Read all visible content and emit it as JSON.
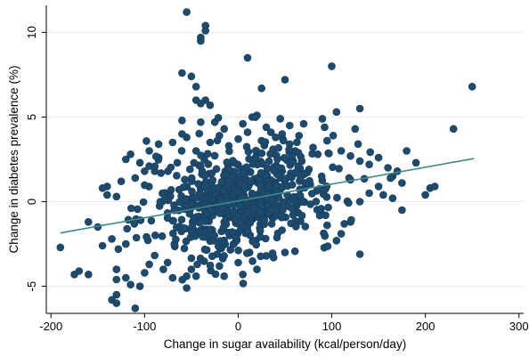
{
  "chart_data": {
    "type": "scatter",
    "xlabel": "Change in sugar availability (kcal/person/day)",
    "ylabel": "Change in diabetes prevalence (%)",
    "xlim": [
      -205,
      305
    ],
    "ylim": [
      -6.6,
      11.6
    ],
    "xticks": [
      -200,
      -100,
      0,
      100,
      200,
      300
    ],
    "yticks": [
      -5,
      0,
      5,
      10
    ],
    "xtick_labels": [
      "-200",
      "-100",
      "0",
      "100",
      "200",
      "300"
    ],
    "ytick_labels": [
      "-5",
      "0",
      "5",
      "10"
    ],
    "grid": true,
    "colors": {
      "points": "#1d4b6e",
      "fit_line": "#3f8a86"
    },
    "series": [
      {
        "points": [
          [
            -55,
            11.2
          ],
          [
            -35,
            10.4
          ],
          [
            -35,
            10.1
          ],
          [
            -40,
            9.7
          ],
          [
            -40,
            9.5
          ],
          [
            10,
            8.5
          ],
          [
            100,
            8.0
          ],
          [
            -60,
            7.6
          ],
          [
            -50,
            7.4
          ],
          [
            50,
            7.2
          ],
          [
            -45,
            6.8
          ],
          [
            25,
            6.7
          ],
          [
            250,
            6.8
          ],
          [
            -45,
            6.0
          ],
          [
            -35,
            6.0
          ],
          [
            -40,
            5.8
          ],
          [
            -30,
            5.7
          ],
          [
            130,
            5.5
          ],
          [
            105,
            5.3
          ],
          [
            -60,
            4.8
          ],
          [
            -40,
            4.7
          ],
          [
            15,
            5.0
          ],
          [
            20,
            5.1
          ],
          [
            45,
            4.9
          ],
          [
            90,
            4.9
          ],
          [
            70,
            4.6
          ],
          [
            -25,
            4.7
          ],
          [
            30,
            4.4
          ],
          [
            55,
            4.5
          ],
          [
            125,
            4.3
          ],
          [
            230,
            4.3
          ],
          [
            -120,
            2.5
          ],
          [
            -115,
            2.8
          ],
          [
            -105,
            2.3
          ],
          [
            -85,
            2.6
          ],
          [
            -100,
            1.8
          ],
          [
            -140,
            0.9
          ],
          [
            -145,
            0.8
          ],
          [
            -125,
            1.2
          ],
          [
            -110,
            1.4
          ],
          [
            -95,
            2.1
          ],
          [
            -75,
            1.8
          ],
          [
            -65,
            2.3
          ],
          [
            160,
            2.0
          ],
          [
            170,
            1.8
          ],
          [
            175,
            1.1
          ],
          [
            190,
            2.3
          ],
          [
            180,
            3.0
          ],
          [
            150,
            2.6
          ],
          [
            140,
            2.2
          ],
          [
            205,
            0.8
          ],
          [
            200,
            0.4
          ],
          [
            210,
            0.9
          ],
          [
            -140,
            0.4
          ],
          [
            -130,
            0.3
          ],
          [
            -160,
            -1.2
          ],
          [
            -150,
            -1.5
          ],
          [
            -145,
            -2.6
          ],
          [
            -135,
            -2.2
          ],
          [
            -128,
            -2.8
          ],
          [
            -120,
            -2.5
          ],
          [
            -190,
            -2.7
          ],
          [
            -175,
            -4.3
          ],
          [
            -170,
            -4.1
          ],
          [
            -160,
            -4.3
          ],
          [
            -130,
            -4.0
          ],
          [
            -130,
            -4.6
          ],
          [
            -120,
            -4.5
          ],
          [
            -100,
            -4.2
          ],
          [
            -95,
            -3.7
          ],
          [
            -115,
            -4.9
          ],
          [
            -105,
            -5.0
          ],
          [
            -130,
            -5.5
          ],
          [
            -135,
            -5.8
          ],
          [
            -130,
            -6.0
          ],
          [
            -110,
            -6.3
          ],
          [
            -80,
            -4.0
          ],
          [
            -70,
            -4.5
          ],
          [
            -55,
            -4.4
          ],
          [
            -55,
            -5.1
          ],
          [
            -50,
            -4.0
          ],
          [
            -45,
            -4.4
          ],
          [
            -20,
            -3.8
          ],
          [
            -15,
            -4.4
          ],
          [
            0,
            -3.6
          ],
          [
            5,
            -4.3
          ],
          [
            20,
            -4.0
          ],
          [
            30,
            -3.2
          ],
          [
            50,
            -3.0
          ],
          [
            130,
            -3.1
          ],
          [
            105,
            -2.3
          ],
          [
            110,
            -1.9
          ],
          [
            95,
            -1.4
          ],
          [
            120,
            -1.2
          ],
          [
            175,
            -0.5
          ],
          [
            130,
            0.0
          ],
          [
            140,
            0.5
          ],
          [
            150,
            0.9
          ],
          [
            155,
            0.4
          ],
          [
            165,
            1.5
          ],
          [
            165,
            0.2
          ],
          [
            -95,
            3.0
          ],
          [
            -85,
            3.4
          ],
          [
            -70,
            3.5
          ],
          [
            -55,
            3.8
          ],
          [
            -45,
            3.0
          ],
          [
            -30,
            3.5
          ],
          [
            -20,
            3.9
          ],
          [
            -10,
            3.3
          ],
          [
            0,
            3.7
          ],
          [
            10,
            4.1
          ],
          [
            25,
            3.6
          ],
          [
            40,
            3.8
          ],
          [
            55,
            3.4
          ],
          [
            65,
            3.9
          ],
          [
            80,
            3.2
          ],
          [
            95,
            3.6
          ],
          [
            110,
            3.0
          ],
          [
            120,
            2.7
          ],
          [
            130,
            2.4
          ],
          [
            85,
            2.8
          ],
          [
            60,
            2.9
          ],
          [
            -60,
            4.0
          ],
          [
            -15,
            4.3
          ],
          [
            5,
            4.6
          ],
          [
            35,
            4.1
          ]
        ]
      }
    ],
    "fit_line": {
      "x": [
        -190,
        252
      ],
      "y": [
        -1.85,
        2.55
      ]
    }
  }
}
